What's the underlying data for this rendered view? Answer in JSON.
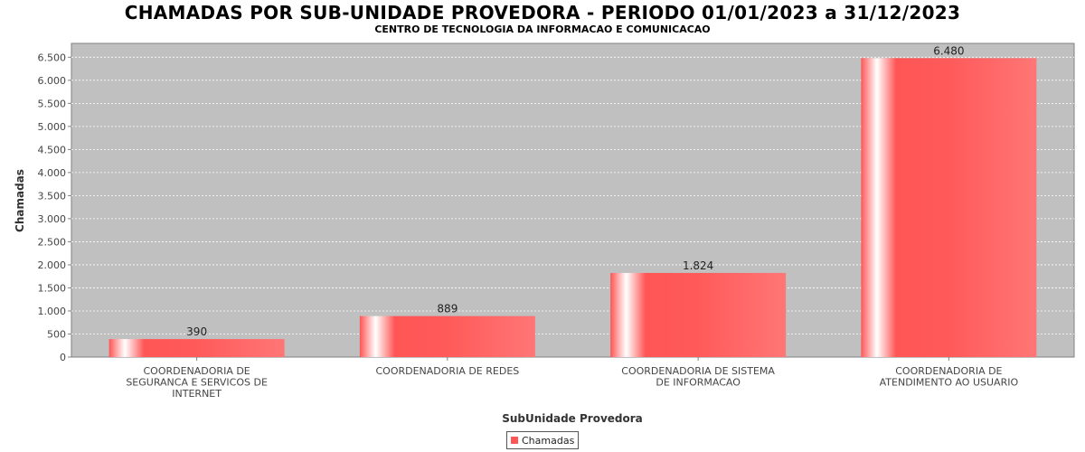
{
  "chart_data": {
    "type": "bar",
    "title": "CHAMADAS POR SUB-UNIDADE PROVEDORA - PERIODO 01/01/2023 a 31/12/2023",
    "subtitle": "CENTRO DE TECNOLOGIA DA INFORMACAO E COMUNICACAO",
    "xlabel": "SubUnidade Provedora",
    "ylabel": "Chamadas",
    "categories": [
      [
        "COORDENADORIA DE",
        "SEGURANCA E SERVICOS DE",
        "INTERNET"
      ],
      [
        "COORDENADORIA DE REDES"
      ],
      [
        "COORDENADORIA DE SISTEMA",
        "DE INFORMACAO"
      ],
      [
        "COORDENADORIA DE",
        "ATENDIMENTO AO USUARIO"
      ]
    ],
    "series": [
      {
        "name": "Chamadas",
        "values": [
          390,
          889,
          1824,
          6480
        ],
        "color": "#ff5555"
      }
    ],
    "value_labels": [
      "390",
      "889",
      "1.824",
      "6.480"
    ],
    "ylim": [
      0,
      6800
    ],
    "yticks": [
      0,
      500,
      1000,
      1500,
      2000,
      2500,
      3000,
      3500,
      4000,
      4500,
      5000,
      5500,
      6000,
      6500
    ],
    "ytick_labels": [
      "0",
      "500",
      "1.000",
      "1.500",
      "2.000",
      "2.500",
      "3.000",
      "3.500",
      "4.000",
      "4.500",
      "5.000",
      "5.500",
      "6.000",
      "6.500"
    ],
    "grid": true,
    "legend_position": "bottom-center",
    "plot_background": "#c0c0c0"
  }
}
